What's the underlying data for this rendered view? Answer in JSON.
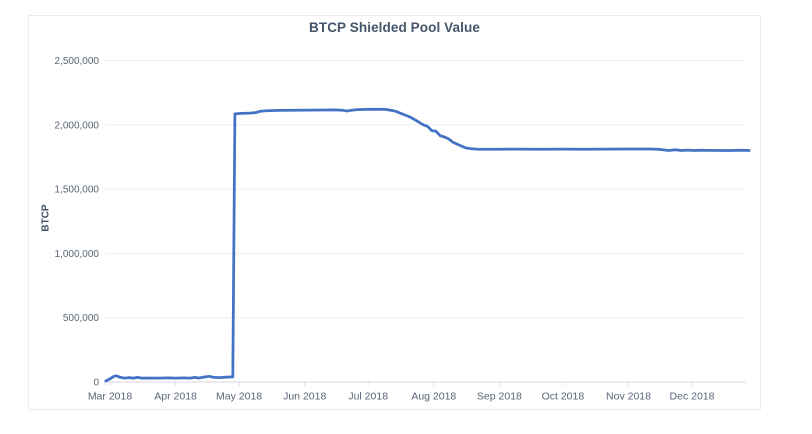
{
  "chart_data": {
    "type": "line",
    "title": "BTCP Shielded Pool Value",
    "xlabel": "",
    "ylabel": "BTCP",
    "x_tick_labels": [
      "Mar 2018",
      "Apr 2018",
      "May 2018",
      "Jun 2018",
      "Jul 2018",
      "Aug 2018",
      "Sep 2018",
      "Oct 2018",
      "Nov 2018",
      "Dec 2018"
    ],
    "y_tick_labels": [
      "0",
      "500,000",
      "1,000,000",
      "1,500,000",
      "2,000,000",
      "2,500,000"
    ],
    "ylim": [
      0,
      2500000
    ],
    "y_tick_step": 500000,
    "grid": "horizontal",
    "legend": "none",
    "colors": {
      "line": "#4472C4",
      "grid": "#edeff3",
      "axis": "#d5d9e0",
      "tick_label": "#5a6576",
      "title": "#44546A",
      "frame_border": "#e9ebee"
    },
    "series": [
      {
        "points": [
          [
            "2018-02-27",
            8000
          ],
          [
            "2018-03-01",
            25000
          ],
          [
            "2018-03-03",
            45000
          ],
          [
            "2018-03-04",
            48000
          ],
          [
            "2018-03-06",
            36000
          ],
          [
            "2018-03-08",
            30000
          ],
          [
            "2018-03-10",
            34000
          ],
          [
            "2018-03-12",
            30000
          ],
          [
            "2018-03-14",
            36000
          ],
          [
            "2018-03-16",
            30000
          ],
          [
            "2018-03-20",
            31000
          ],
          [
            "2018-03-24",
            30000
          ],
          [
            "2018-03-28",
            32000
          ],
          [
            "2018-04-01",
            30000
          ],
          [
            "2018-04-05",
            32000
          ],
          [
            "2018-04-08",
            30000
          ],
          [
            "2018-04-10",
            36000
          ],
          [
            "2018-04-12",
            31000
          ],
          [
            "2018-04-15",
            40000
          ],
          [
            "2018-04-17",
            44000
          ],
          [
            "2018-04-19",
            36000
          ],
          [
            "2018-04-22",
            34000
          ],
          [
            "2018-04-25",
            38000
          ],
          [
            "2018-04-28",
            40000
          ],
          [
            "2018-04-29",
            2085000
          ],
          [
            "2018-05-02",
            2089000
          ],
          [
            "2018-05-06",
            2091000
          ],
          [
            "2018-05-09",
            2095000
          ],
          [
            "2018-05-11",
            2106000
          ],
          [
            "2018-05-14",
            2110000
          ],
          [
            "2018-05-20",
            2112000
          ],
          [
            "2018-05-27",
            2113000
          ],
          [
            "2018-06-03",
            2114000
          ],
          [
            "2018-06-10",
            2115000
          ],
          [
            "2018-06-15",
            2116000
          ],
          [
            "2018-06-19",
            2113000
          ],
          [
            "2018-06-21",
            2107000
          ],
          [
            "2018-06-23",
            2113000
          ],
          [
            "2018-06-26",
            2118000
          ],
          [
            "2018-06-30",
            2120000
          ],
          [
            "2018-07-05",
            2121000
          ],
          [
            "2018-07-09",
            2120000
          ],
          [
            "2018-07-11",
            2115000
          ],
          [
            "2018-07-14",
            2105000
          ],
          [
            "2018-07-17",
            2085000
          ],
          [
            "2018-07-20",
            2065000
          ],
          [
            "2018-07-22",
            2050000
          ],
          [
            "2018-07-25",
            2020000
          ],
          [
            "2018-07-27",
            2000000
          ],
          [
            "2018-07-29",
            1988000
          ],
          [
            "2018-07-31",
            1955000
          ],
          [
            "2018-08-02",
            1950000
          ],
          [
            "2018-08-04",
            1915000
          ],
          [
            "2018-08-06",
            1905000
          ],
          [
            "2018-08-08",
            1890000
          ],
          [
            "2018-08-10",
            1865000
          ],
          [
            "2018-08-12",
            1850000
          ],
          [
            "2018-08-14",
            1835000
          ],
          [
            "2018-08-16",
            1820000
          ],
          [
            "2018-08-19",
            1813000
          ],
          [
            "2018-08-22",
            1810000
          ],
          [
            "2018-09-01",
            1810000
          ],
          [
            "2018-09-10",
            1811000
          ],
          [
            "2018-09-20",
            1810000
          ],
          [
            "2018-10-01",
            1811000
          ],
          [
            "2018-10-10",
            1810000
          ],
          [
            "2018-10-20",
            1811000
          ],
          [
            "2018-11-01",
            1812000
          ],
          [
            "2018-11-10",
            1812000
          ],
          [
            "2018-11-15",
            1810000
          ],
          [
            "2018-11-18",
            1804000
          ],
          [
            "2018-11-20",
            1800000
          ],
          [
            "2018-11-23",
            1806000
          ],
          [
            "2018-11-26",
            1800000
          ],
          [
            "2018-11-29",
            1803000
          ],
          [
            "2018-12-02",
            1800000
          ],
          [
            "2018-12-05",
            1802000
          ],
          [
            "2018-12-10",
            1801000
          ],
          [
            "2018-12-15",
            1800000
          ],
          [
            "2018-12-20",
            1800000
          ],
          [
            "2018-12-24",
            1802000
          ],
          [
            "2018-12-28",
            1800000
          ]
        ]
      }
    ]
  }
}
